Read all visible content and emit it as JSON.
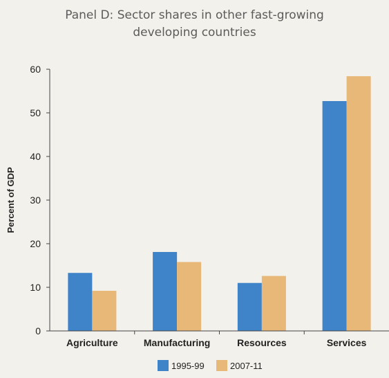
{
  "chart_data": {
    "type": "bar",
    "title": "Panel D: Sector shares in other fast-growing\ndeveloping countries",
    "ylabel": "Percent of GDP",
    "xlabel": "",
    "ylim": [
      0,
      60
    ],
    "yticks": [
      0,
      10,
      20,
      30,
      40,
      50,
      60
    ],
    "categories": [
      "Agriculture",
      "Manufacturing",
      "Resources",
      "Services"
    ],
    "series": [
      {
        "name": "1995-99",
        "color": "#3f83c8",
        "values": [
          13.3,
          18.1,
          11.0,
          52.7
        ]
      },
      {
        "name": "2007-11",
        "color": "#e8b878",
        "values": [
          9.2,
          15.8,
          12.6,
          58.4
        ]
      }
    ],
    "grid": false,
    "legend_position": "bottom-center"
  }
}
